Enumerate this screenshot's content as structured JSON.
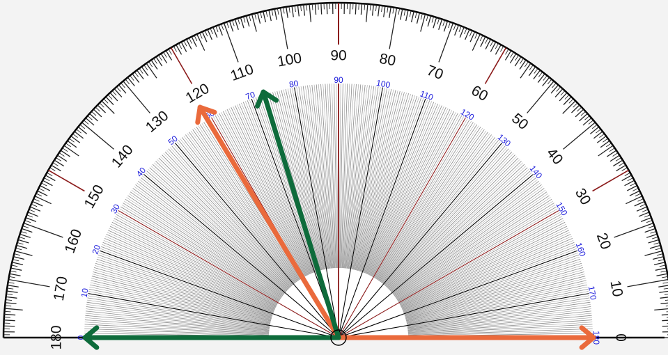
{
  "colors": {
    "background": "#f3f3f3",
    "face": "#ffffff",
    "tick": "#222222",
    "fine_line": "#8a8a8a",
    "ten_degree_line": "#000000",
    "thirty_degree_line": "#8b1a1a",
    "inner_label": "#1a1adb",
    "orange_arrow": "#ea6a3c",
    "green_arrow": "#0e6b3b"
  },
  "outer_scale": {
    "labels": [
      "0",
      "10",
      "20",
      "30",
      "40",
      "50",
      "60",
      "70",
      "80",
      "90",
      "100",
      "110",
      "120",
      "130",
      "140",
      "150",
      "160",
      "170",
      "180"
    ]
  },
  "inner_scale": {
    "labels": [
      "180",
      "170",
      "160",
      "150",
      "140",
      "130",
      "120",
      "110",
      "100",
      "90",
      "80",
      "70",
      "60",
      "50",
      "40",
      "30",
      "20",
      "10",
      "0"
    ]
  },
  "rays": [
    {
      "name": "orange-arrow-right",
      "color": "orange_arrow",
      "angle_deg": 0
    },
    {
      "name": "orange-arrow-upper",
      "color": "orange_arrow",
      "angle_deg": 121
    },
    {
      "name": "green-arrow-left",
      "color": "green_arrow",
      "angle_deg": 180
    },
    {
      "name": "green-arrow-upper",
      "color": "green_arrow",
      "angle_deg": 107
    }
  ]
}
